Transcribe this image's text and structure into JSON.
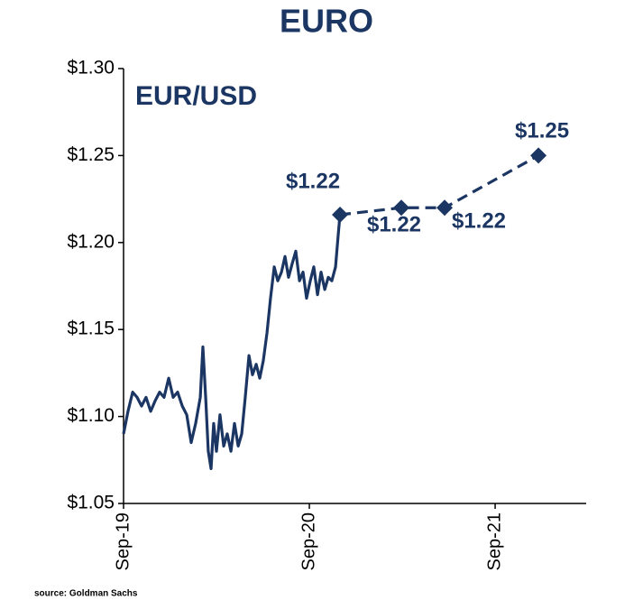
{
  "chart_data": {
    "type": "line",
    "title": "EURO",
    "annotation": "EUR/USD",
    "source": "source: Goldman Sachs",
    "xlim": [
      2019.67,
      2022.16
    ],
    "ylim": [
      1.05,
      1.3
    ],
    "xticks": [
      {
        "value": 2019.67,
        "label": "Sep-19"
      },
      {
        "value": 2020.67,
        "label": "Sep-20"
      },
      {
        "value": 2021.67,
        "label": "Sep-21"
      }
    ],
    "yticks": [
      {
        "value": 1.05,
        "label": "$1.05"
      },
      {
        "value": 1.1,
        "label": "$1.10"
      },
      {
        "value": 1.15,
        "label": "$1.15"
      },
      {
        "value": 1.2,
        "label": "$1.20"
      },
      {
        "value": 1.25,
        "label": "$1.25"
      },
      {
        "value": 1.3,
        "label": "$1.30"
      }
    ],
    "grid": false,
    "series": [
      {
        "color": "#1c3664",
        "dashed": false,
        "markers": "none",
        "x": [
          2019.67,
          2019.694,
          2019.719,
          2019.743,
          2019.767,
          2019.791,
          2019.816,
          2019.84,
          2019.864,
          2019.888,
          2019.913,
          2019.937,
          2019.961,
          2019.986,
          2020.01,
          2020.034,
          2020.058,
          2020.083,
          2020.097,
          2020.112,
          2020.126,
          2020.141,
          2020.155,
          2020.17,
          2020.189,
          2020.209,
          2020.228,
          2020.248,
          2020.267,
          2020.287,
          2020.306,
          2020.325,
          2020.345,
          2020.364,
          2020.384,
          2020.403,
          2020.422,
          2020.442,
          2020.461,
          2020.481,
          2020.5,
          2020.52,
          2020.539,
          2020.558,
          2020.578,
          2020.597,
          2020.617,
          2020.636,
          2020.655,
          2020.675,
          2020.694,
          2020.714,
          2020.733,
          2020.753,
          2020.772,
          2020.791,
          2020.811,
          2020.825,
          2020.835
        ],
        "values": [
          1.09,
          1.103,
          1.114,
          1.111,
          1.106,
          1.111,
          1.103,
          1.109,
          1.114,
          1.111,
          1.122,
          1.111,
          1.114,
          1.106,
          1.101,
          1.085,
          1.096,
          1.111,
          1.14,
          1.111,
          1.08,
          1.07,
          1.096,
          1.08,
          1.101,
          1.083,
          1.09,
          1.08,
          1.096,
          1.083,
          1.09,
          1.111,
          1.135,
          1.124,
          1.13,
          1.122,
          1.132,
          1.148,
          1.168,
          1.186,
          1.178,
          1.183,
          1.192,
          1.18,
          1.188,
          1.195,
          1.178,
          1.183,
          1.168,
          1.178,
          1.186,
          1.17,
          1.183,
          1.173,
          1.18,
          1.178,
          1.186,
          1.204,
          1.216
        ]
      },
      {
        "color": "#1c3664",
        "dashed": true,
        "markers": "diamond",
        "x": [
          2020.835,
          2021.165,
          2021.398,
          2021.903
        ],
        "values": [
          1.216,
          1.22,
          1.22,
          1.25
        ],
        "value_labels": [
          "$1.22",
          "$1.22",
          "$1.22",
          "$1.25"
        ]
      }
    ]
  }
}
